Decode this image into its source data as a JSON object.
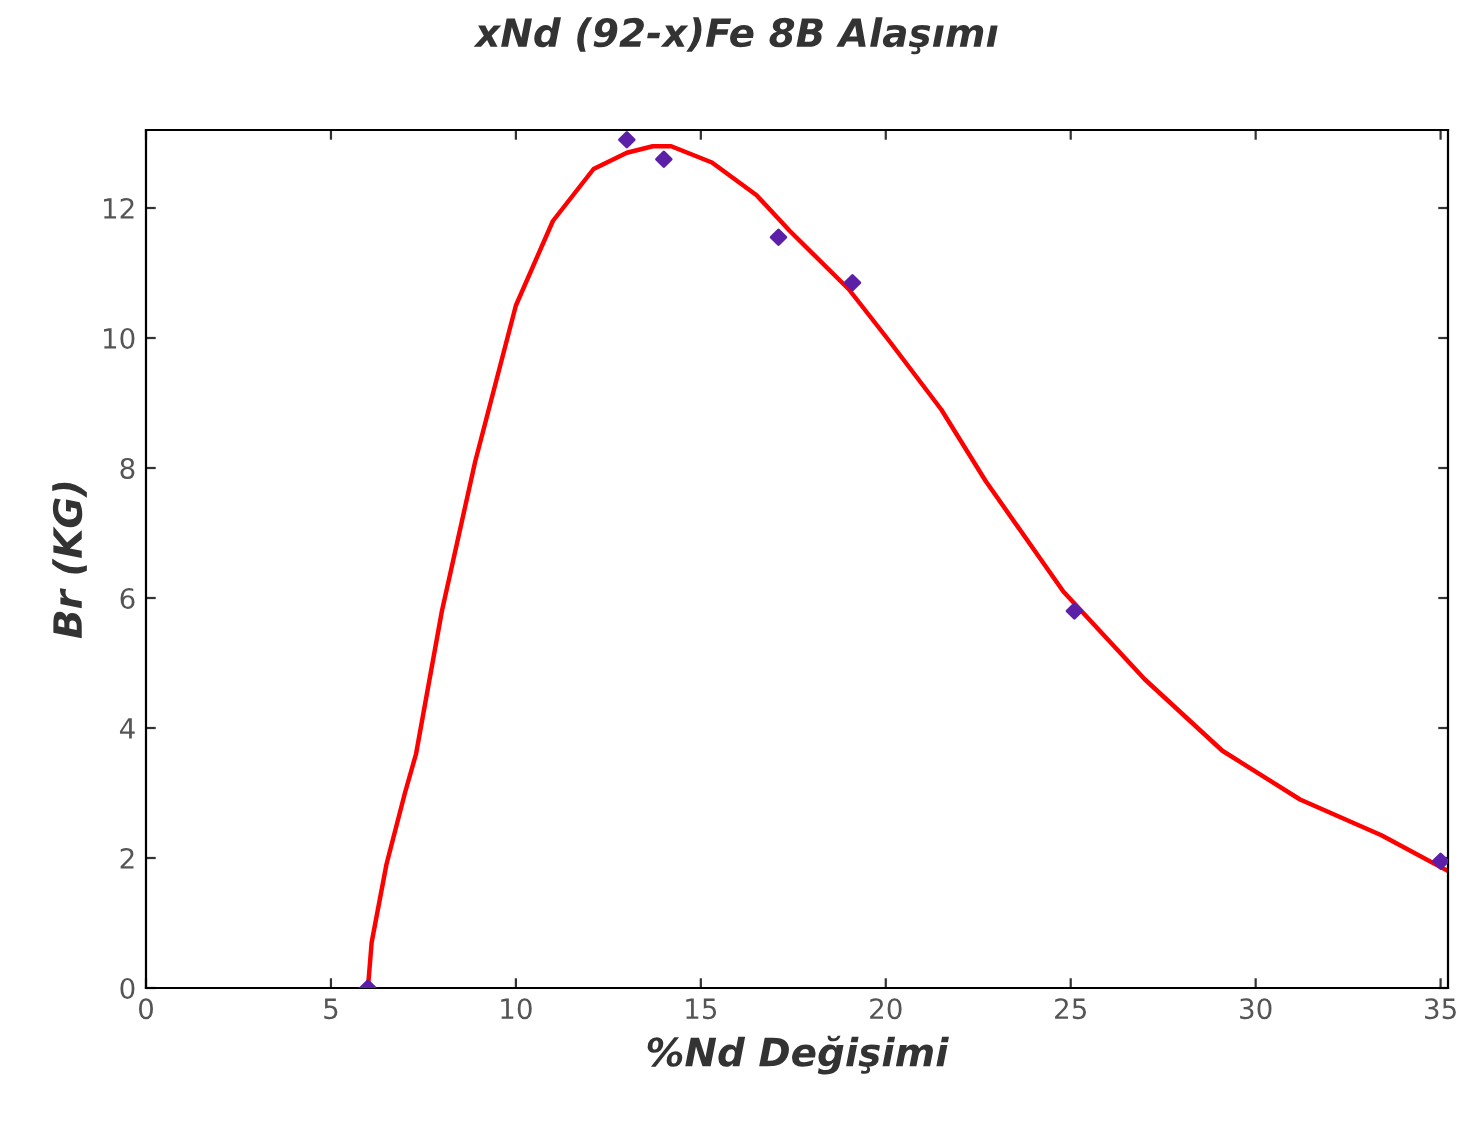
{
  "chart_data": {
    "type": "line",
    "title": "xNd (92-x)Fe 8B Alaşımı",
    "xlabel": "%Nd Değişimi",
    "ylabel": "Br (KG)",
    "xlim": [
      0,
      35.2
    ],
    "ylim": [
      0,
      13.2
    ],
    "xticks": [
      0,
      5,
      10,
      15,
      20,
      25,
      30,
      35
    ],
    "yticks": [
      0,
      2,
      4,
      6,
      8,
      10,
      12
    ],
    "grid": false,
    "legend": false,
    "series": [
      {
        "color": "#ff0000",
        "marker": "none",
        "line_style": "solid",
        "x": [
          6.0,
          6.1,
          6.5,
          7.0,
          7.3,
          8.0,
          8.9,
          10.0,
          11.0,
          12.1,
          13.0,
          13.7,
          14.2,
          15.3,
          16.5,
          17.4,
          19.0,
          20.1,
          21.5,
          22.7,
          24.8,
          27.0,
          29.1,
          31.2,
          33.4,
          35.2
        ],
        "values": [
          0.0,
          0.7,
          1.9,
          3.0,
          3.6,
          5.8,
          8.1,
          10.5,
          11.8,
          12.6,
          12.85,
          12.95,
          12.95,
          12.7,
          12.2,
          11.65,
          10.75,
          9.95,
          8.9,
          7.8,
          6.1,
          4.75,
          3.65,
          2.9,
          2.35,
          1.8
        ]
      },
      {
        "type": "scatter",
        "color": "#5b1fa8",
        "marker": "diamond",
        "x": [
          6.0,
          13.0,
          14.0,
          17.1,
          19.1,
          25.1,
          35.0
        ],
        "values": [
          0.0,
          13.05,
          12.75,
          11.55,
          10.85,
          5.8,
          1.95
        ]
      }
    ]
  }
}
